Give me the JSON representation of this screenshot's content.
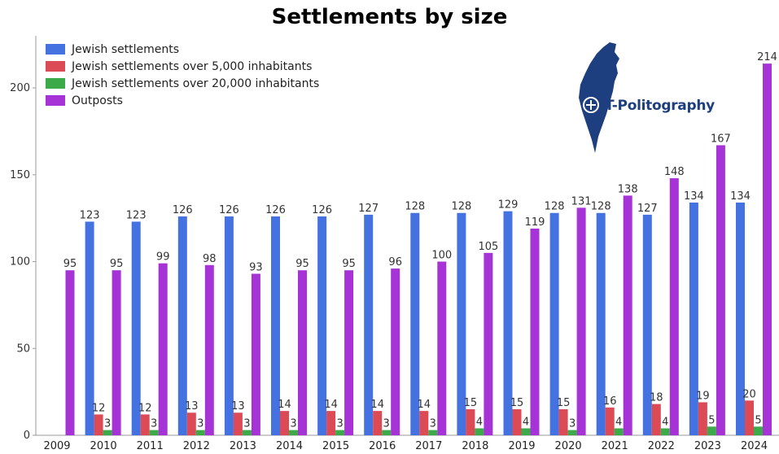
{
  "chart_data": {
    "type": "bar",
    "title": "Settlements by size",
    "categories": [
      "2009",
      "2010",
      "2011",
      "2012",
      "2013",
      "2014",
      "2015",
      "2016",
      "2017",
      "2018",
      "2019",
      "2020",
      "2021",
      "2022",
      "2023",
      "2024"
    ],
    "series": [
      {
        "name": "Jewish settlements",
        "color": "#4472e0",
        "values": [
          null,
          123,
          123,
          126,
          126,
          126,
          126,
          127,
          128,
          128,
          129,
          128,
          128,
          127,
          134,
          134
        ]
      },
      {
        "name": "Jewish settlements over 5,000 inhabitants",
        "color": "#dc4b55",
        "values": [
          null,
          12,
          12,
          13,
          13,
          14,
          14,
          14,
          14,
          15,
          15,
          15,
          16,
          18,
          19,
          20
        ]
      },
      {
        "name": "Jewish settlements over 20,000 inhabitants",
        "color": "#3daa4a",
        "values": [
          null,
          3,
          3,
          3,
          3,
          3,
          3,
          3,
          3,
          4,
          4,
          3,
          4,
          4,
          5,
          5
        ]
      },
      {
        "name": "Outposts",
        "color": "#a533d6",
        "values": [
          95,
          95,
          99,
          98,
          93,
          95,
          95,
          96,
          100,
          105,
          119,
          131,
          138,
          148,
          167,
          214
        ]
      }
    ],
    "ylim": [
      0,
      230
    ],
    "yticks": [
      0,
      50,
      100,
      150,
      200
    ],
    "legend_position": "top-left",
    "grid": false,
    "xlabel": "",
    "ylabel": ""
  },
  "logo": {
    "text": "T-Politography",
    "color": "#1d3f80"
  }
}
